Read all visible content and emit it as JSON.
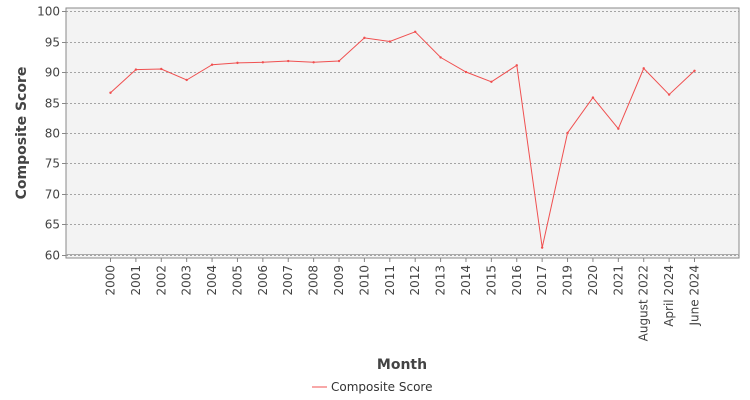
{
  "chart_data": {
    "type": "line",
    "title": "",
    "xlabel": "Month",
    "ylabel": "Composite Score",
    "categories": [
      "2000",
      "2001",
      "2002",
      "2003",
      "2004",
      "2005",
      "2006",
      "2007",
      "2008",
      "2009",
      "2010",
      "2011",
      "2012",
      "2013",
      "2014",
      "2015",
      "2016",
      "2017",
      "2019",
      "2020",
      "2021",
      "August 2022",
      "April 2024",
      "June 2024"
    ],
    "series": [
      {
        "name": "Composite Score",
        "color": "#f05050",
        "values": [
          86.6,
          90.4,
          90.5,
          88.7,
          91.2,
          91.5,
          91.6,
          91.8,
          91.6,
          91.8,
          95.6,
          95.0,
          96.6,
          92.4,
          90.0,
          88.4,
          91.1,
          61.2,
          80.0,
          85.8,
          80.7,
          90.6,
          86.3,
          90.2
        ]
      }
    ],
    "ylim": [
      59.5,
      100.5
    ],
    "yticks": [
      60,
      65,
      70,
      75,
      80,
      85,
      90,
      95,
      100
    ],
    "grid": true,
    "legend": "bottom-center",
    "plot_background": "#f3f3f3",
    "gridline_color": "#8a8a8a"
  }
}
